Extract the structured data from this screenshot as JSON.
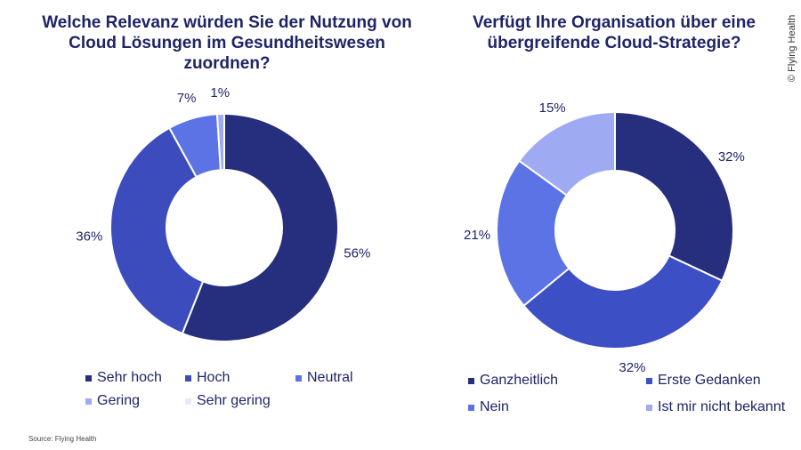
{
  "chart_data": [
    {
      "type": "donut",
      "title": "Welche Relevanz würden Sie der Nutzung  von Cloud Lösungen im Gesundheitswesen zuordnen?",
      "categories": [
        "Sehr hoch",
        "Hoch",
        "Neutral",
        "Gering",
        "Sehr gering"
      ],
      "values": [
        56,
        36,
        7,
        1,
        0
      ],
      "labels": [
        "56%",
        "36%",
        "7%",
        "1%",
        ""
      ],
      "colors": [
        "#262e7e",
        "#3d4cbd",
        "#5c73e6",
        "#9eaaf2",
        "#e6e8f7"
      ],
      "legend": "bottom"
    },
    {
      "type": "donut",
      "title": "Verfügt Ihre Organisation über eine übergreifende Cloud-Strategie?",
      "categories": [
        "Ganzheitlich",
        "Erste Gedanken",
        "Nein",
        "Ist mir nicht bekannt"
      ],
      "values": [
        32,
        32,
        21,
        15
      ],
      "labels": [
        "32%",
        "32%",
        "21%",
        "15%"
      ],
      "colors": [
        "#262e7e",
        "#3d4fc4",
        "#5c73e6",
        "#9eaaf2"
      ],
      "legend": "bottom"
    }
  ],
  "source": "Source: Flying Health",
  "copyright": "© Flying Health"
}
